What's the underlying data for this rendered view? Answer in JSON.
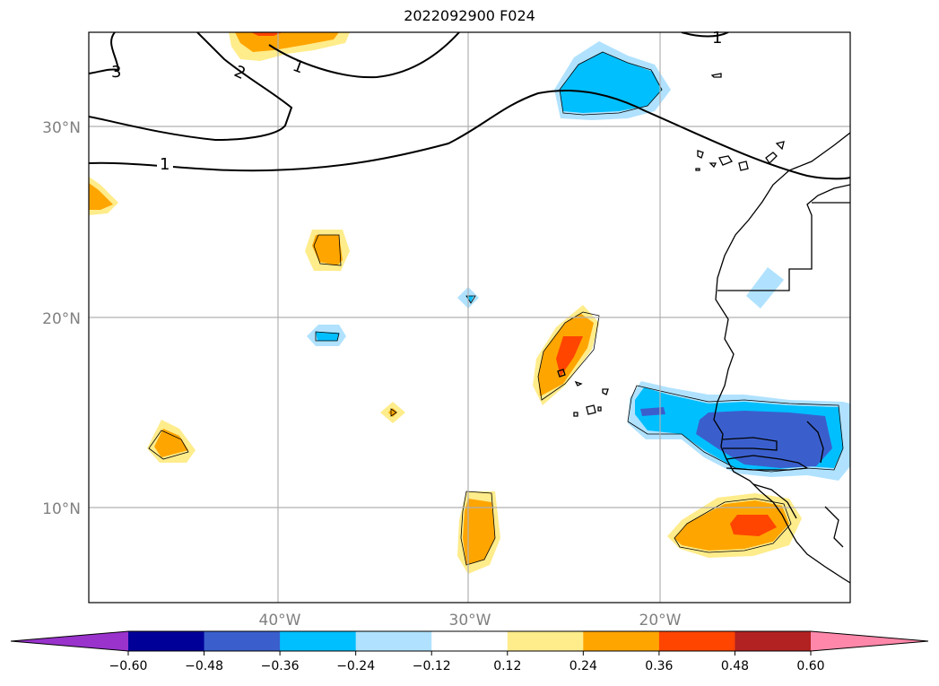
{
  "title": "2022092900 F024",
  "map": {
    "lat_labels": [
      {
        "value": 30,
        "text": "30°N"
      },
      {
        "value": 20,
        "text": "20°N"
      },
      {
        "value": 10,
        "text": "10°N"
      }
    ],
    "lon_labels": [
      {
        "value": -40,
        "text": "40°W"
      },
      {
        "value": -30,
        "text": "30°W"
      },
      {
        "value": -20,
        "text": "20°W"
      }
    ],
    "contour_labels": [
      "1",
      "2",
      "3",
      "1",
      "1"
    ],
    "gridline_color": "#b0b0b0",
    "coast_color": "#000000"
  },
  "colorbar": {
    "extend": "both",
    "ticks": [
      "−0.60",
      "−0.48",
      "−0.36",
      "−0.24",
      "−0.12",
      "0.12",
      "0.24",
      "0.36",
      "0.48",
      "0.60"
    ],
    "colors": [
      "#9933cc",
      "#000099",
      "#3a5fcd",
      "#00bfff",
      "#b0e2ff",
      "#ffffff",
      "#ffec8b",
      "#ffa500",
      "#ff4500",
      "#b22222",
      "#ff88aa"
    ]
  }
}
